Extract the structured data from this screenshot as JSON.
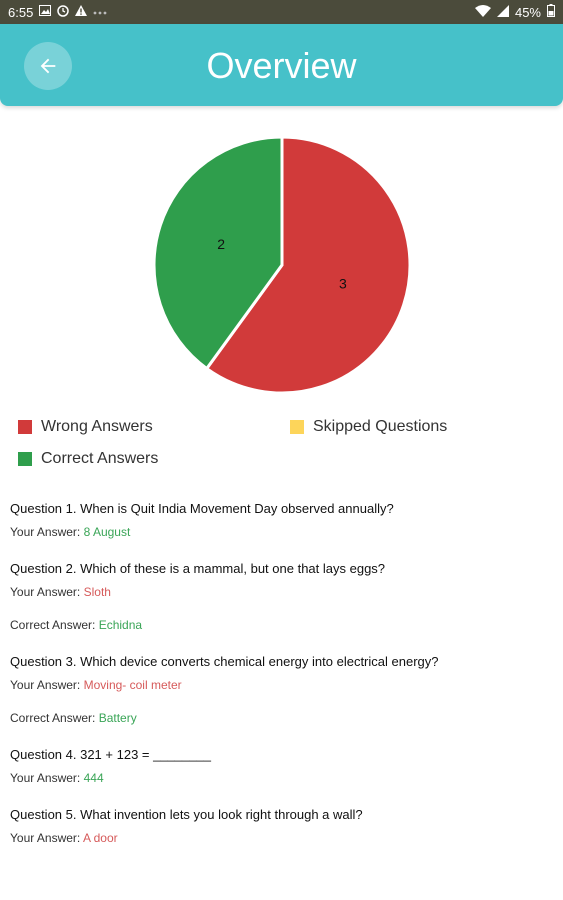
{
  "status_bar": {
    "time": "6:55",
    "battery": "45%",
    "left_icons": [
      "image-icon",
      "sync-icon",
      "warning-icon",
      "more-icon"
    ],
    "right_icons": [
      "wifi-icon",
      "signal-icon",
      "battery-icon"
    ]
  },
  "header": {
    "title": "Overview",
    "back_icon": "arrow-left-icon"
  },
  "colors": {
    "header": "#46c1c9",
    "wrong": "#d13a3a",
    "correct": "#2f9e4c",
    "skipped": "#fdd55a",
    "correct_text": "#3aa557",
    "wrong_text": "#d65a5a"
  },
  "chart_data": {
    "type": "pie",
    "slices": [
      {
        "label": "Wrong Answers",
        "value": 3,
        "color": "#d13a3a"
      },
      {
        "label": "Correct Answers",
        "value": 2,
        "color": "#2f9e4c"
      },
      {
        "label": "Skipped Questions",
        "value": 0,
        "color": "#fdd55a"
      }
    ],
    "legend": [
      "Wrong Answers",
      "Skipped Questions",
      "Correct Answers"
    ]
  },
  "legend": {
    "wrong": "Wrong Answers",
    "skipped": "Skipped Questions",
    "correct": "Correct Answers"
  },
  "labels": {
    "your_answer": "Your Answer: ",
    "correct_answer": "Correct Answer: "
  },
  "questions": [
    {
      "text": "Question 1. When is Quit India Movement Day observed annually?",
      "your_answer": "8 August",
      "is_correct": true
    },
    {
      "text": "Question 2. Which of these is a mammal, but one that lays eggs?",
      "your_answer": "Sloth",
      "is_correct": false,
      "correct_answer": "Echidna"
    },
    {
      "text": "Question 3. Which device converts chemical energy into electrical energy?",
      "your_answer": "Moving- coil meter",
      "is_correct": false,
      "correct_answer": "Battery"
    },
    {
      "text": "Question 4. 321 + 123 = ________",
      "your_answer": "444",
      "is_correct": true
    },
    {
      "text": "Question 5. What invention lets you look right through a wall?",
      "your_answer": "A door",
      "is_correct": false
    }
  ]
}
